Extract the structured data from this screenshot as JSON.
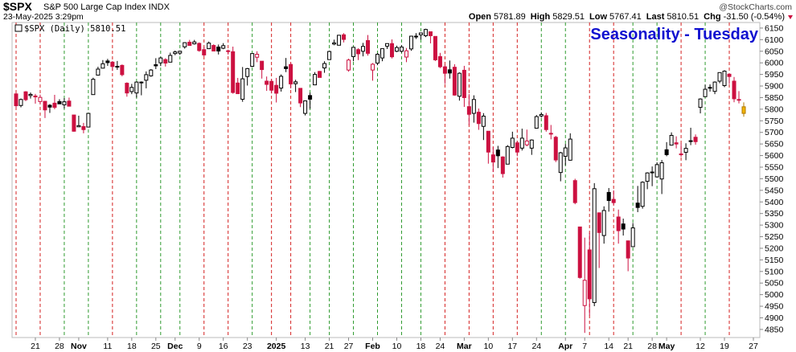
{
  "chart_data": {
    "type": "candlestick",
    "symbol": "$SPX",
    "name": "S&P 500 Large Cap Index INDX",
    "timestamp": "23-May-2025 3:29pm",
    "source": "@StockCharts.com",
    "quote": [
      {
        "label": "Open",
        "value": "5781.89"
      },
      {
        "label": "High",
        "value": "5829.51"
      },
      {
        "label": "Low",
        "value": "5767.41"
      },
      {
        "label": "Last",
        "value": "5810.51"
      },
      {
        "label": "Chg",
        "value": "-31.50 (-0.54%)"
      }
    ],
    "legend": "$SPX (Daily) 5810.51",
    "annotation": "Seasonality - Tuesday",
    "colors": {
      "up": "#000000",
      "down": "#cc1040",
      "last": "#f2b500",
      "up_line": "#2e9a2e",
      "down_line": "#d42020",
      "annotation": "#1010d0"
    },
    "dates": [
      "2024-10-15",
      "2024-10-16",
      "2024-10-17",
      "2024-10-18",
      "2024-10-21",
      "2024-10-22",
      "2024-10-23",
      "2024-10-24",
      "2024-10-25",
      "2024-10-28",
      "2024-10-29",
      "2024-10-30",
      "2024-10-31",
      "2024-11-01",
      "2024-11-04",
      "2024-11-05",
      "2024-11-06",
      "2024-11-07",
      "2024-11-08",
      "2024-11-11",
      "2024-11-12",
      "2024-11-13",
      "2024-11-14",
      "2024-11-15",
      "2024-11-18",
      "2024-11-19",
      "2024-11-20",
      "2024-11-21",
      "2024-11-22",
      "2024-11-25",
      "2024-11-26",
      "2024-11-27",
      "2024-11-29",
      "2024-12-02",
      "2024-12-03",
      "2024-12-04",
      "2024-12-05",
      "2024-12-06",
      "2024-12-09",
      "2024-12-10",
      "2024-12-11",
      "2024-12-12",
      "2024-12-13",
      "2024-12-16",
      "2024-12-17",
      "2024-12-18",
      "2024-12-19",
      "2024-12-20",
      "2024-12-23",
      "2024-12-24",
      "2024-12-26",
      "2024-12-27",
      "2024-12-30",
      "2024-12-31",
      "2025-01-02",
      "2025-01-03",
      "2025-01-06",
      "2025-01-07",
      "2025-01-08",
      "2025-01-10",
      "2025-01-13",
      "2025-01-14",
      "2025-01-15",
      "2025-01-16",
      "2025-01-17",
      "2025-01-21",
      "2025-01-22",
      "2025-01-23",
      "2025-01-24",
      "2025-01-27",
      "2025-01-28",
      "2025-01-29",
      "2025-01-30",
      "2025-01-31",
      "2025-02-03",
      "2025-02-04",
      "2025-02-05",
      "2025-02-06",
      "2025-02-07",
      "2025-02-10",
      "2025-02-11",
      "2025-02-12",
      "2025-02-13",
      "2025-02-14",
      "2025-02-18",
      "2025-02-19",
      "2025-02-20",
      "2025-02-21",
      "2025-02-24",
      "2025-02-25",
      "2025-02-26",
      "2025-02-27",
      "2025-02-28",
      "2025-03-03",
      "2025-03-04",
      "2025-03-05",
      "2025-03-06",
      "2025-03-07",
      "2025-03-10",
      "2025-03-11",
      "2025-03-12",
      "2025-03-13",
      "2025-03-14",
      "2025-03-17",
      "2025-03-18",
      "2025-03-19",
      "2025-03-20",
      "2025-03-21",
      "2025-03-24",
      "2025-03-25",
      "2025-03-26",
      "2025-03-27",
      "2025-03-28",
      "2025-03-31",
      "2025-04-01",
      "2025-04-02",
      "2025-04-03",
      "2025-04-04",
      "2025-04-07",
      "2025-04-08",
      "2025-04-09",
      "2025-04-10",
      "2025-04-11",
      "2025-04-14",
      "2025-04-15",
      "2025-04-16",
      "2025-04-17",
      "2025-04-21",
      "2025-04-22",
      "2025-04-23",
      "2025-04-24",
      "2025-04-25",
      "2025-04-28",
      "2025-04-29",
      "2025-04-30",
      "2025-05-01",
      "2025-05-02",
      "2025-05-05",
      "2025-05-06",
      "2025-05-07",
      "2025-05-08",
      "2025-05-09",
      "2025-05-12",
      "2025-05-13",
      "2025-05-14",
      "2025-05-15",
      "2025-05-16",
      "2025-05-19",
      "2025-05-20",
      "2025-05-21",
      "2025-05-22",
      "2025-05-23"
    ],
    "candles": [
      [
        5866,
        5870,
        5804,
        5815
      ],
      [
        5816,
        5846,
        5808,
        5842
      ],
      [
        5875,
        5878,
        5835,
        5841
      ],
      [
        5859,
        5872,
        5846,
        5864
      ],
      [
        5857,
        5866,
        5824,
        5853
      ],
      [
        5833,
        5863,
        5822,
        5851
      ],
      [
        5834,
        5835,
        5762,
        5797
      ],
      [
        5817,
        5822,
        5784,
        5809
      ],
      [
        5826,
        5862,
        5800,
        5808
      ],
      [
        5833,
        5843,
        5823,
        5823
      ],
      [
        5819,
        5848,
        5803,
        5832
      ],
      [
        5835,
        5850,
        5812,
        5813
      ],
      [
        5775,
        5775,
        5703,
        5705
      ],
      [
        5724,
        5772,
        5723,
        5729
      ],
      [
        5725,
        5741,
        5696,
        5712
      ],
      [
        5723,
        5783,
        5722,
        5782
      ],
      [
        5863,
        5936,
        5863,
        5929
      ],
      [
        5947,
        5983,
        5946,
        5973
      ],
      [
        5977,
        6012,
        5976,
        5996
      ],
      [
        6008,
        6017,
        5987,
        6001
      ],
      [
        6003,
        6008,
        5965,
        5984
      ],
      [
        5985,
        6008,
        5970,
        5985
      ],
      [
        5989,
        5993,
        5942,
        5949
      ],
      [
        5912,
        5916,
        5854,
        5870
      ],
      [
        5876,
        5909,
        5865,
        5894
      ],
      [
        5870,
        5920,
        5850,
        5917
      ],
      [
        5917,
        5920,
        5860,
        5917
      ],
      [
        5925,
        5963,
        5890,
        5949
      ],
      [
        5944,
        5973,
        5940,
        5969
      ],
      [
        5992,
        6020,
        5973,
        5987
      ],
      [
        6000,
        6026,
        5986,
        6021
      ],
      [
        6014,
        6020,
        5984,
        5999
      ],
      [
        6003,
        6044,
        6003,
        6032
      ],
      [
        6040,
        6053,
        6033,
        6047
      ],
      [
        6042,
        6052,
        6034,
        6050
      ],
      [
        6069,
        6089,
        6061,
        6087
      ],
      [
        6089,
        6099,
        6075,
        6075
      ],
      [
        6082,
        6099,
        6079,
        6090
      ],
      [
        6084,
        6088,
        6048,
        6053
      ],
      [
        6057,
        6068,
        6027,
        6034
      ],
      [
        6061,
        6092,
        6060,
        6085
      ],
      [
        6075,
        6080,
        6051,
        6051
      ],
      [
        6068,
        6079,
        6036,
        6051
      ],
      [
        6063,
        6085,
        6059,
        6074
      ],
      [
        6052,
        6057,
        6036,
        6050
      ],
      [
        6048,
        6070,
        5867,
        5872
      ],
      [
        5913,
        5935,
        5866,
        5867
      ],
      [
        5843,
        5982,
        5832,
        5931
      ],
      [
        5941,
        5978,
        5902,
        5975
      ],
      [
        5985,
        6040,
        5982,
        6040
      ],
      [
        6024,
        6050,
        6003,
        6037
      ],
      [
        6007,
        6007,
        5932,
        5971
      ],
      [
        5921,
        5941,
        5879,
        5907
      ],
      [
        5920,
        5929,
        5868,
        5882
      ],
      [
        5903,
        5935,
        5829,
        5869
      ],
      [
        5891,
        5950,
        5876,
        5942
      ],
      [
        5983,
        6021,
        5960,
        5975
      ],
      [
        5993,
        6000,
        5890,
        5909
      ],
      [
        5910,
        5927,
        5874,
        5918
      ],
      [
        5890,
        5890,
        5809,
        5827
      ],
      [
        5782,
        5837,
        5773,
        5836
      ],
      [
        5859,
        5871,
        5802,
        5843
      ],
      [
        5905,
        5960,
        5905,
        5950
      ],
      [
        5963,
        5965,
        5937,
        5937
      ],
      [
        5978,
        6007,
        5957,
        5997
      ],
      [
        6014,
        6052,
        6014,
        6049
      ],
      [
        6081,
        6100,
        6076,
        6086
      ],
      [
        6076,
        6118,
        6075,
        6119
      ],
      [
        6121,
        6128,
        6088,
        6101
      ],
      [
        5969,
        6018,
        5962,
        6012
      ],
      [
        6027,
        6069,
        6007,
        6067
      ],
      [
        6057,
        6063,
        6012,
        6039
      ],
      [
        6050,
        6086,
        6028,
        6071
      ],
      [
        6096,
        6120,
        6031,
        6041
      ],
      [
        5969,
        5999,
        5923,
        5994
      ],
      [
        5999,
        6042,
        5990,
        6037
      ],
      [
        6021,
        6062,
        6007,
        6061
      ],
      [
        6072,
        6084,
        6060,
        6083
      ],
      [
        6083,
        6101,
        6019,
        6026
      ],
      [
        6050,
        6074,
        6046,
        6066
      ],
      [
        6050,
        6076,
        6044,
        6068
      ],
      [
        6025,
        6064,
        6003,
        6052
      ],
      [
        6060,
        6117,
        6052,
        6115
      ],
      [
        6115,
        6128,
        6103,
        6115
      ],
      [
        6121,
        6129,
        6100,
        6129
      ],
      [
        6117,
        6147,
        6111,
        6144
      ],
      [
        6134,
        6134,
        6084,
        6117
      ],
      [
        6114,
        6115,
        6008,
        6013
      ],
      [
        6027,
        6043,
        5977,
        5983
      ],
      [
        5983,
        5992,
        5909,
        5955
      ],
      [
        5970,
        6010,
        5932,
        5956
      ],
      [
        5981,
        5994,
        5858,
        5861
      ],
      [
        5856,
        5959,
        5837,
        5955
      ],
      [
        5968,
        5987,
        5810,
        5850
      ],
      [
        5811,
        5865,
        5732,
        5778
      ],
      [
        5782,
        5860,
        5742,
        5842
      ],
      [
        5787,
        5803,
        5711,
        5738
      ],
      [
        5726,
        5783,
        5667,
        5770
      ],
      [
        5705,
        5705,
        5565,
        5615
      ],
      [
        5603,
        5636,
        5529,
        5572
      ],
      [
        5624,
        5642,
        5546,
        5599
      ],
      [
        5594,
        5597,
        5505,
        5522
      ],
      [
        5563,
        5645,
        5563,
        5639
      ],
      [
        5635,
        5703,
        5631,
        5675
      ],
      [
        5655,
        5662,
        5597,
        5615
      ],
      [
        5632,
        5716,
        5622,
        5675
      ],
      [
        5646,
        5712,
        5640,
        5663
      ],
      [
        5632,
        5670,
        5603,
        5667
      ],
      [
        5718,
        5775,
        5718,
        5768
      ],
      [
        5771,
        5786,
        5764,
        5777
      ],
      [
        5772,
        5784,
        5703,
        5712
      ],
      [
        5696,
        5732,
        5670,
        5693
      ],
      [
        5679,
        5685,
        5572,
        5581
      ],
      [
        5527,
        5616,
        5489,
        5612
      ],
      [
        5597,
        5650,
        5558,
        5633
      ],
      [
        5580,
        5696,
        5578,
        5671
      ],
      [
        5492,
        5500,
        5390,
        5397
      ],
      [
        5292,
        5292,
        5069,
        5074
      ],
      [
        4953,
        5246,
        4835,
        5062
      ],
      [
        5193,
        5267,
        4910,
        4982
      ],
      [
        4966,
        5481,
        4950,
        5457
      ],
      [
        5353,
        5353,
        5115,
        5268
      ],
      [
        5255,
        5381,
        5220,
        5363
      ],
      [
        5441,
        5460,
        5358,
        5406
      ],
      [
        5411,
        5450,
        5386,
        5397
      ],
      [
        5335,
        5367,
        5220,
        5276
      ],
      [
        5305,
        5328,
        5255,
        5283
      ],
      [
        5232,
        5233,
        5101,
        5158
      ],
      [
        5207,
        5309,
        5207,
        5288
      ],
      [
        5395,
        5469,
        5356,
        5376
      ],
      [
        5381,
        5489,
        5371,
        5485
      ],
      [
        5489,
        5528,
        5455,
        5525
      ],
      [
        5529,
        5553,
        5468,
        5529
      ],
      [
        5508,
        5571,
        5505,
        5561
      ],
      [
        5499,
        5581,
        5434,
        5569
      ],
      [
        5625,
        5658,
        5597,
        5604
      ],
      [
        5645,
        5700,
        5644,
        5687
      ],
      [
        5655,
        5683,
        5631,
        5650
      ],
      [
        5606,
        5652,
        5594,
        5607
      ],
      [
        5614,
        5653,
        5580,
        5631
      ],
      [
        5663,
        5720,
        5645,
        5664
      ],
      [
        5679,
        5691,
        5647,
        5660
      ],
      [
        5808,
        5847,
        5782,
        5844
      ],
      [
        5854,
        5906,
        5854,
        5886
      ],
      [
        5894,
        5907,
        5876,
        5892
      ],
      [
        5877,
        5920,
        5865,
        5917
      ],
      [
        5921,
        5959,
        5912,
        5958
      ],
      [
        5902,
        5968,
        5895,
        5964
      ],
      [
        5951,
        5953,
        5909,
        5941
      ],
      [
        5921,
        5939,
        5830,
        5845
      ],
      [
        5841,
        5878,
        5825,
        5842
      ],
      [
        5781.89,
        5829.51,
        5767.41,
        5810.51
      ]
    ],
    "xticks": [
      {
        "value": "2024-10-21",
        "label": "21"
      },
      {
        "value": "2024-10-28",
        "label": "28"
      },
      {
        "value": "2024-11-01",
        "label": "Nov"
      },
      {
        "value": "2024-11-11",
        "label": "11"
      },
      {
        "value": "2024-11-18",
        "label": "18"
      },
      {
        "value": "2024-11-25",
        "label": "25"
      },
      {
        "value": "2024-12-02",
        "label": "Dec"
      },
      {
        "value": "2024-12-09",
        "label": "9"
      },
      {
        "value": "2024-12-16",
        "label": "16"
      },
      {
        "value": "2024-12-23",
        "label": "23"
      },
      {
        "value": "2025-01-02",
        "label": "2025"
      },
      {
        "value": "2025-01-13",
        "label": "13"
      },
      {
        "value": "2025-01-21",
        "label": "21"
      },
      {
        "value": "2025-01-27",
        "label": "27"
      },
      {
        "value": "2025-02-03",
        "label": "Feb"
      },
      {
        "value": "2025-02-10",
        "label": "10"
      },
      {
        "value": "2025-02-18",
        "label": "18"
      },
      {
        "value": "2025-02-24",
        "label": "24"
      },
      {
        "value": "2025-03-03",
        "label": "Mar"
      },
      {
        "value": "2025-03-10",
        "label": "10"
      },
      {
        "value": "2025-03-17",
        "label": "17"
      },
      {
        "value": "2025-03-24",
        "label": "24"
      },
      {
        "value": "2025-04-01",
        "label": "Apr"
      },
      {
        "value": "2025-04-07",
        "label": "7"
      },
      {
        "value": "2025-04-14",
        "label": "14"
      },
      {
        "value": "2025-04-21",
        "label": "21"
      },
      {
        "value": "2025-04-28",
        "label": "28"
      },
      {
        "value": "2025-05-01",
        "label": "May"
      },
      {
        "value": "2025-05-12",
        "label": "12"
      },
      {
        "value": "2025-05-19",
        "label": "19"
      },
      {
        "value": "2025-05-27",
        "label": "27"
      }
    ],
    "ylim": [
      4815,
      6174
    ],
    "yticks": [
      4850,
      4900,
      4950,
      5000,
      5050,
      5100,
      5150,
      5200,
      5250,
      5300,
      5350,
      5400,
      5450,
      5500,
      5550,
      5600,
      5650,
      5700,
      5750,
      5800,
      5850,
      5900,
      5950,
      6000,
      6050,
      6100,
      6150
    ]
  }
}
